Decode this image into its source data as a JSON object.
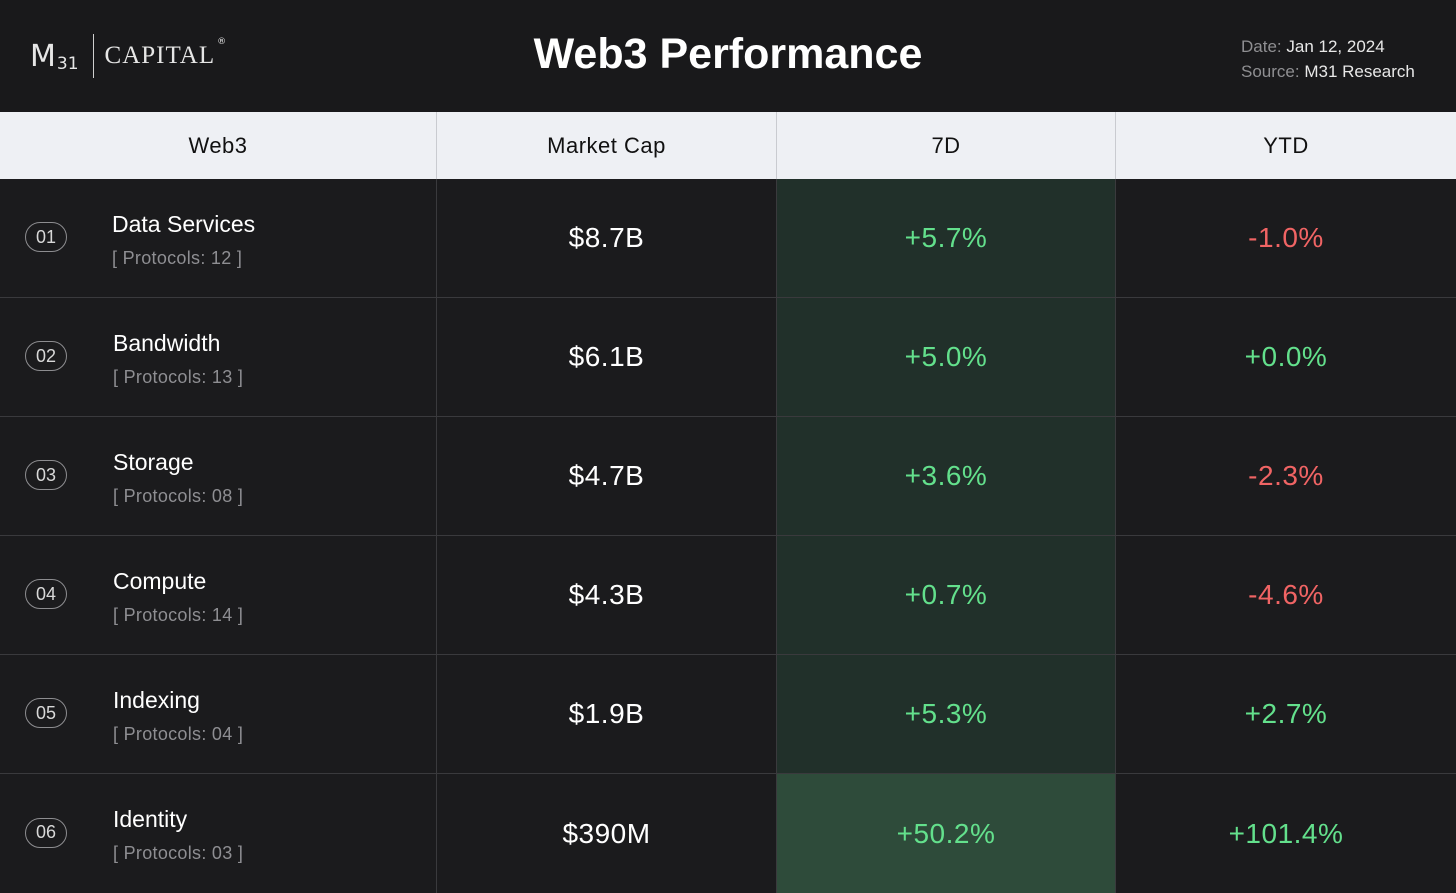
{
  "header": {
    "logo": {
      "mark": "M",
      "sub": "31",
      "word": "CAPITAL",
      "reg": "®"
    },
    "title": "Web3 Performance",
    "date_label": "Date:",
    "date_value": "Jan 12, 2024",
    "source_label": "Source:",
    "source_value": "M31 Research"
  },
  "table": {
    "columns": [
      "Web3",
      "Market Cap",
      "7D",
      "YTD"
    ],
    "rows": [
      {
        "rank": "01",
        "name": "Data Services",
        "protocols": "[ Protocols: 12 ]",
        "market_cap": "$8.7B",
        "d7": "+5.7%",
        "ytd": "-1.0%"
      },
      {
        "rank": "02",
        "name": "Bandwidth",
        "protocols": "[ Protocols: 13 ]",
        "market_cap": "$6.1B",
        "d7": "+5.0%",
        "ytd": "+0.0%"
      },
      {
        "rank": "03",
        "name": "Storage",
        "protocols": "[ Protocols: 08 ]",
        "market_cap": "$4.7B",
        "d7": "+3.6%",
        "ytd": "-2.3%"
      },
      {
        "rank": "04",
        "name": "Compute",
        "protocols": "[ Protocols: 14 ]",
        "market_cap": "$4.3B",
        "d7": "+0.7%",
        "ytd": "-4.6%"
      },
      {
        "rank": "05",
        "name": "Indexing",
        "protocols": "[ Protocols: 04 ]",
        "market_cap": "$1.9B",
        "d7": "+5.3%",
        "ytd": "+2.7%"
      },
      {
        "rank": "06",
        "name": "Identity",
        "protocols": "[ Protocols: 03 ]",
        "market_cap": "$390M",
        "d7": "+50.2%",
        "ytd": "+101.4%"
      }
    ]
  },
  "colors": {
    "positive": "#63e08c",
    "negative": "#f06464",
    "header_bg": "#eef0f4",
    "page_bg": "#1b1b1d"
  }
}
